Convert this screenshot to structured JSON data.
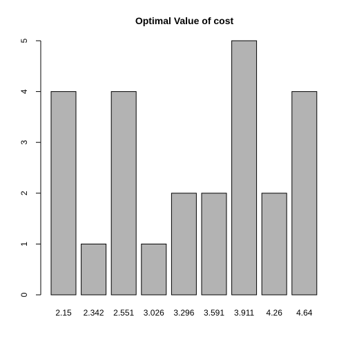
{
  "chart_data": {
    "type": "bar",
    "title": "Optimal Value of cost",
    "xlabel": "",
    "ylabel": "",
    "categories": [
      "2.15",
      "2.342",
      "2.551",
      "3.026",
      "3.296",
      "3.591",
      "3.911",
      "4.26",
      "4.64"
    ],
    "values": [
      4,
      1,
      4,
      1,
      2,
      2,
      5,
      2,
      4
    ],
    "ylim": [
      0,
      5
    ],
    "yticks": [
      0,
      1,
      2,
      3,
      4,
      5
    ],
    "grid": false,
    "legend": "none",
    "bar_color": "#b3b3b3",
    "bar_border_color": "#000000"
  }
}
